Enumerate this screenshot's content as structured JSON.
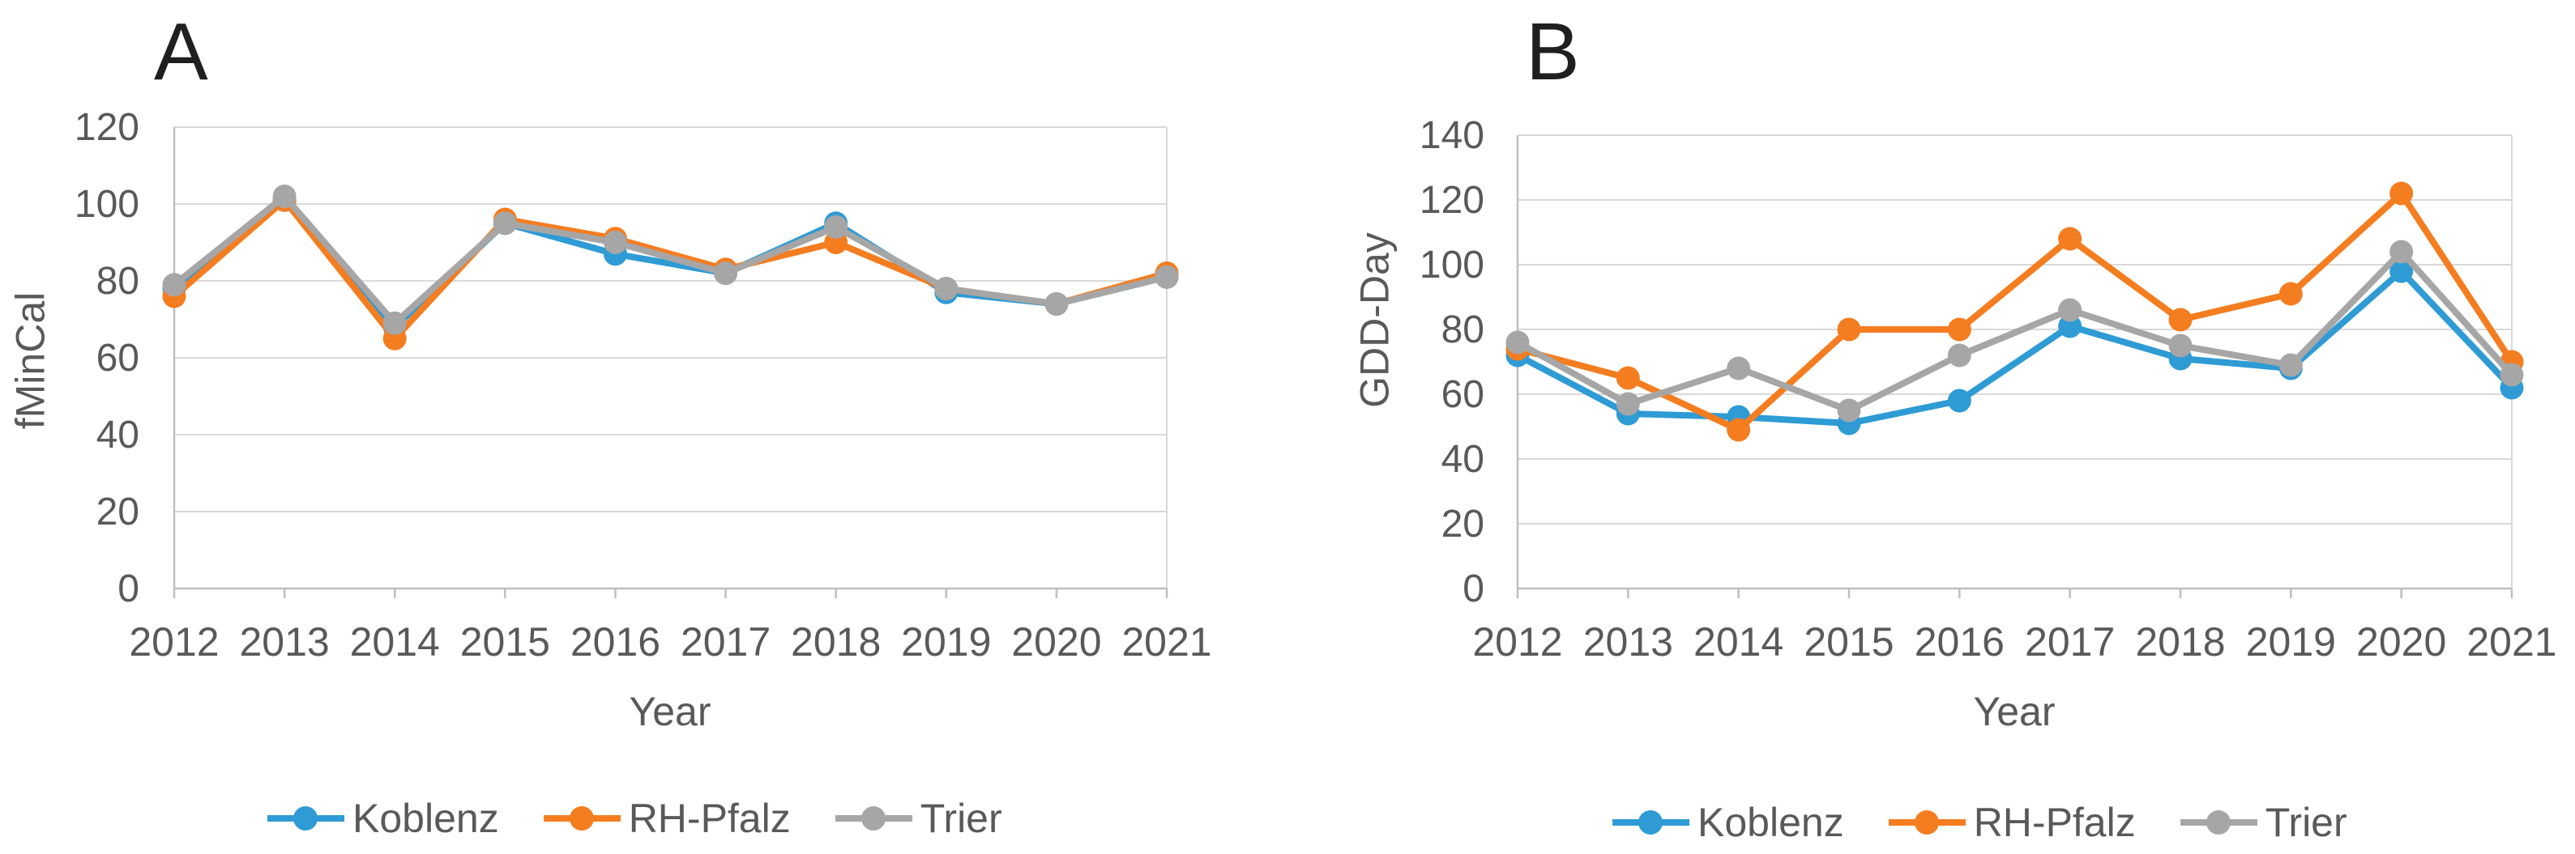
{
  "chart_data": [
    {
      "type": "line",
      "panel_label": "A",
      "xlabel": "Year",
      "ylabel": "fMinCal",
      "categories": [
        "2012",
        "2013",
        "2014",
        "2015",
        "2016",
        "2017",
        "2018",
        "2019",
        "2020",
        "2021"
      ],
      "ylim": [
        0,
        120
      ],
      "ytick_step": 20,
      "yticks": [
        "0",
        "20",
        "40",
        "60",
        "80",
        "100",
        "120"
      ],
      "grid": "horizontal",
      "legend_position": "bottom",
      "series": [
        {
          "name": "Koblenz",
          "color": "#2E9BD5",
          "marker": "circle",
          "values": [
            78,
            101,
            68,
            95,
            87,
            82,
            95,
            77,
            74,
            81
          ]
        },
        {
          "name": "RH-Pfalz",
          "color": "#F47D20",
          "marker": "circle",
          "values": [
            76,
            101,
            65,
            96,
            91,
            83,
            90,
            78,
            74,
            82
          ]
        },
        {
          "name": "Trier",
          "color": "#A6A6A6",
          "marker": "circle",
          "values": [
            79,
            102,
            69,
            95,
            90,
            82,
            94,
            78,
            74,
            81
          ]
        }
      ]
    },
    {
      "type": "line",
      "panel_label": "B",
      "xlabel": "Year",
      "ylabel": "GDD-Day",
      "categories": [
        "2012",
        "2013",
        "2014",
        "2015",
        "2016",
        "2017",
        "2018",
        "2019",
        "2020",
        "2021"
      ],
      "ylim": [
        0,
        140
      ],
      "ytick_step": 20,
      "yticks": [
        "0",
        "20",
        "40",
        "60",
        "80",
        "100",
        "120",
        "140"
      ],
      "grid": "horizontal",
      "legend_position": "bottom",
      "series": [
        {
          "name": "Koblenz",
          "color": "#2E9BD5",
          "marker": "circle",
          "values": [
            72,
            54,
            53,
            51,
            58,
            81,
            71,
            68,
            98,
            62
          ]
        },
        {
          "name": "RH-Pfalz",
          "color": "#F47D20",
          "marker": "circle",
          "values": [
            74,
            65,
            49,
            80,
            80,
            108,
            83,
            91,
            122,
            70
          ]
        },
        {
          "name": "Trier",
          "color": "#A6A6A6",
          "marker": "circle",
          "values": [
            76,
            57,
            68,
            55,
            72,
            86,
            75,
            69,
            104,
            66
          ]
        }
      ]
    }
  ],
  "style": {
    "gridline_color": "#D9D9D9",
    "axis_color": "#BFBFBF",
    "tick_color": "#BFBFBF",
    "text_color": "#595959",
    "background": "#FFFFFF"
  }
}
